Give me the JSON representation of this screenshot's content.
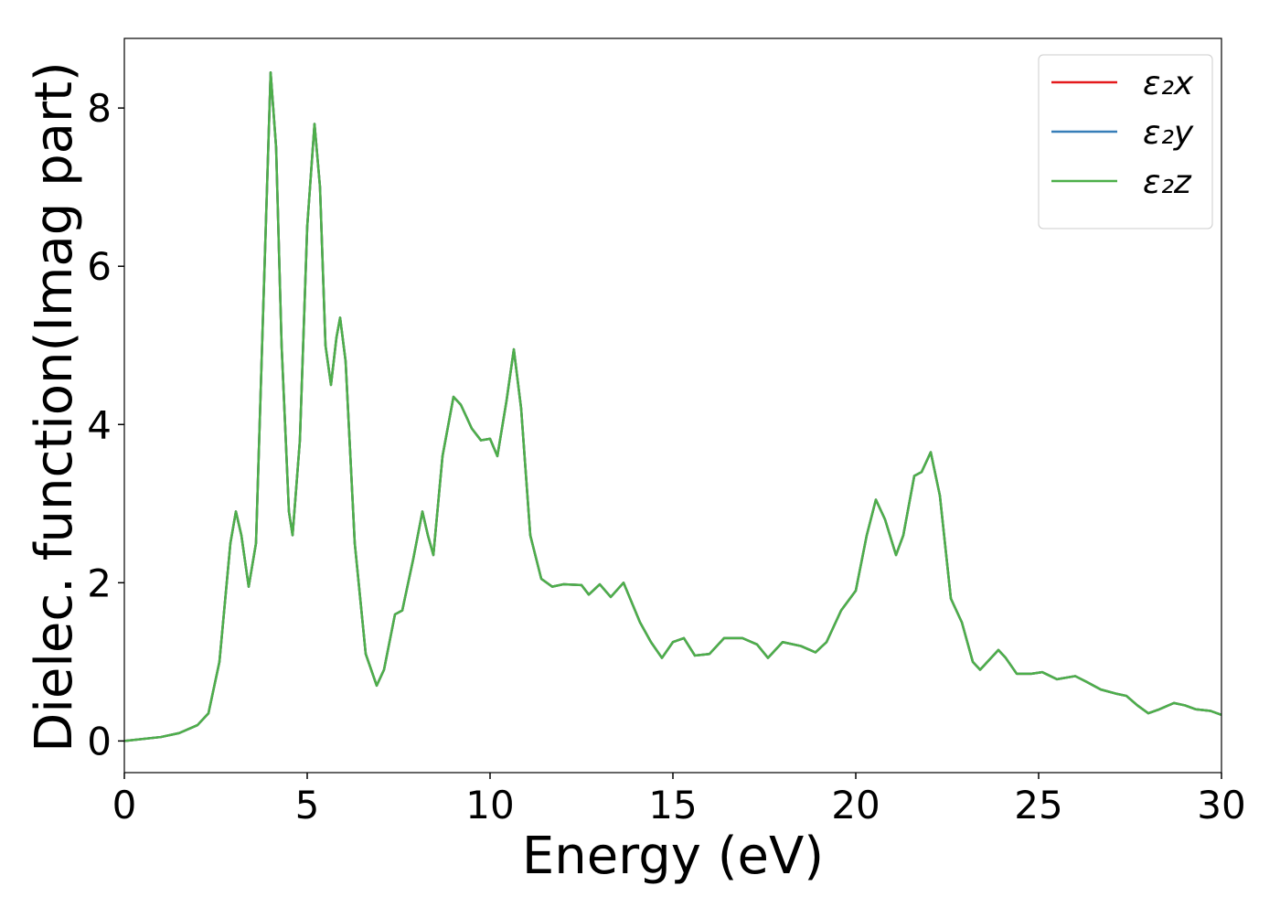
{
  "chart_data": {
    "type": "line",
    "xlabel": "Energy (eV)",
    "ylabel": "Dielec. function(Imag part)",
    "x": [
      0,
      1,
      1.5,
      2,
      2.3,
      2.6,
      2.9,
      3.05,
      3.2,
      3.4,
      3.6,
      3.8,
      4.0,
      4.15,
      4.3,
      4.5,
      4.6,
      4.8,
      5.0,
      5.2,
      5.35,
      5.5,
      5.65,
      5.8,
      5.9,
      6.05,
      6.3,
      6.6,
      6.9,
      7.1,
      7.4,
      7.6,
      7.9,
      8.15,
      8.3,
      8.45,
      8.7,
      9.0,
      9.2,
      9.5,
      9.75,
      10,
      10.2,
      10.45,
      10.65,
      10.85,
      11.1,
      11.4,
      11.7,
      12,
      12.5,
      12.7,
      13,
      13.3,
      13.65,
      14.1,
      14.4,
      14.7,
      15,
      15.3,
      15.6,
      16,
      16.4,
      16.9,
      17.3,
      17.6,
      17.8,
      18,
      18.5,
      18.9,
      19.2,
      19.6,
      20,
      20.3,
      20.55,
      20.8,
      21.1,
      21.3,
      21.6,
      21.8,
      22.05,
      22.3,
      22.6,
      22.9,
      23.2,
      23.4,
      23.7,
      23.9,
      24.1,
      24.4,
      24.8,
      25.1,
      25.5,
      26,
      26.3,
      26.7,
      27.1,
      27.4,
      27.7,
      28,
      28.3,
      28.7,
      29,
      29.3,
      29.7,
      30
    ],
    "series": [
      {
        "name": "ε₂x",
        "color": "#e41a1c",
        "values": [
          0,
          0.05,
          0.1,
          0.2,
          0.35,
          1.0,
          2.5,
          2.9,
          2.6,
          1.95,
          2.5,
          5.5,
          8.45,
          7.5,
          5,
          2.9,
          2.6,
          3.8,
          6.5,
          7.8,
          7,
          5,
          4.5,
          5.1,
          5.35,
          4.8,
          2.5,
          1.1,
          0.7,
          0.9,
          1.6,
          1.65,
          2.3,
          2.9,
          2.6,
          2.35,
          3.6,
          4.35,
          4.25,
          3.95,
          3.8,
          3.82,
          3.6,
          4.3,
          4.95,
          4.2,
          2.6,
          2.05,
          1.95,
          1.98,
          1.97,
          1.85,
          1.98,
          1.82,
          2.0,
          1.5,
          1.25,
          1.05,
          1.25,
          1.3,
          1.08,
          1.1,
          1.3,
          1.3,
          1.22,
          1.05,
          1.15,
          1.25,
          1.2,
          1.12,
          1.25,
          1.65,
          1.9,
          2.6,
          3.05,
          2.8,
          2.35,
          2.6,
          3.35,
          3.4,
          3.65,
          3.1,
          1.8,
          1.5,
          1.0,
          0.9,
          1.05,
          1.15,
          1.05,
          0.85,
          0.85,
          0.87,
          0.78,
          0.82,
          0.75,
          0.65,
          0.6,
          0.57,
          0.45,
          0.35,
          0.4,
          0.48,
          0.45,
          0.4,
          0.38,
          0.33
        ]
      },
      {
        "name": "ε₂y",
        "color": "#377eb8",
        "values": [
          0,
          0.05,
          0.1,
          0.2,
          0.35,
          1.0,
          2.5,
          2.9,
          2.6,
          1.95,
          2.5,
          5.5,
          8.45,
          7.5,
          5,
          2.9,
          2.6,
          3.8,
          6.5,
          7.8,
          7,
          5,
          4.5,
          5.1,
          5.35,
          4.8,
          2.5,
          1.1,
          0.7,
          0.9,
          1.6,
          1.65,
          2.3,
          2.9,
          2.6,
          2.35,
          3.6,
          4.35,
          4.25,
          3.95,
          3.8,
          3.82,
          3.6,
          4.3,
          4.95,
          4.2,
          2.6,
          2.05,
          1.95,
          1.98,
          1.97,
          1.85,
          1.98,
          1.82,
          2.0,
          1.5,
          1.25,
          1.05,
          1.25,
          1.3,
          1.08,
          1.1,
          1.3,
          1.3,
          1.22,
          1.05,
          1.15,
          1.25,
          1.2,
          1.12,
          1.25,
          1.65,
          1.9,
          2.6,
          3.05,
          2.8,
          2.35,
          2.6,
          3.35,
          3.4,
          3.65,
          3.1,
          1.8,
          1.5,
          1.0,
          0.9,
          1.05,
          1.15,
          1.05,
          0.85,
          0.85,
          0.87,
          0.78,
          0.82,
          0.75,
          0.65,
          0.6,
          0.57,
          0.45,
          0.35,
          0.4,
          0.48,
          0.45,
          0.4,
          0.38,
          0.33
        ]
      },
      {
        "name": "ε₂z",
        "color": "#4daf4a",
        "values": [
          0,
          0.05,
          0.1,
          0.2,
          0.35,
          1.0,
          2.5,
          2.9,
          2.6,
          1.95,
          2.5,
          5.5,
          8.45,
          7.5,
          5,
          2.9,
          2.6,
          3.8,
          6.5,
          7.8,
          7,
          5,
          4.5,
          5.1,
          5.35,
          4.8,
          2.5,
          1.1,
          0.7,
          0.9,
          1.6,
          1.65,
          2.3,
          2.9,
          2.6,
          2.35,
          3.6,
          4.35,
          4.25,
          3.95,
          3.8,
          3.82,
          3.6,
          4.3,
          4.95,
          4.2,
          2.6,
          2.05,
          1.95,
          1.98,
          1.97,
          1.85,
          1.98,
          1.82,
          2.0,
          1.5,
          1.25,
          1.05,
          1.25,
          1.3,
          1.08,
          1.1,
          1.3,
          1.3,
          1.22,
          1.05,
          1.15,
          1.25,
          1.2,
          1.12,
          1.25,
          1.65,
          1.9,
          2.6,
          3.05,
          2.8,
          2.35,
          2.6,
          3.35,
          3.4,
          3.65,
          3.1,
          1.8,
          1.5,
          1.0,
          0.9,
          1.05,
          1.15,
          1.05,
          0.85,
          0.85,
          0.87,
          0.78,
          0.82,
          0.75,
          0.65,
          0.6,
          0.57,
          0.45,
          0.35,
          0.4,
          0.48,
          0.45,
          0.4,
          0.38,
          0.33
        ]
      }
    ],
    "xlim": [
      0,
      30
    ],
    "xticks": [
      0,
      5,
      10,
      15,
      20,
      25,
      30
    ],
    "ylim": [
      -0.4,
      8.88
    ],
    "yticks": [
      0,
      2,
      4,
      6,
      8
    ],
    "grid": false,
    "legend": "upper right"
  }
}
